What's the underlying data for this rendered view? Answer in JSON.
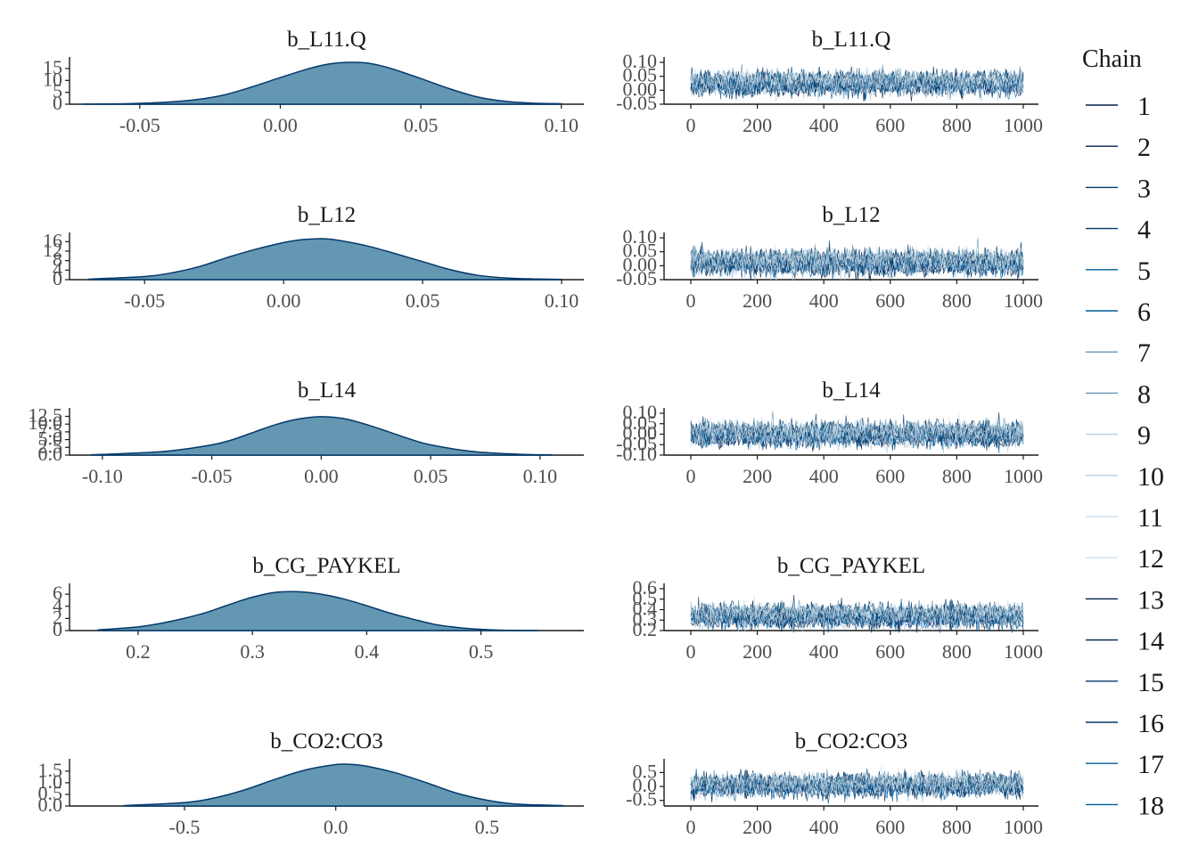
{
  "chart_data": [
    {
      "type": "area",
      "title": "b_L11.Q",
      "xlim": [
        -0.075,
        0.108
      ],
      "ylim": [
        0,
        17.6
      ],
      "xticks": [
        "-0.05",
        "0.00",
        "0.05",
        "0.10"
      ],
      "yticks": [
        "0",
        "5",
        "10",
        "15"
      ],
      "density": {
        "x": [
          -0.07,
          -0.055,
          -0.04,
          -0.03,
          -0.02,
          -0.01,
          0,
          0.01,
          0.015,
          0.02,
          0.025,
          0.03,
          0.035,
          0.04,
          0.05,
          0.06,
          0.07,
          0.08,
          0.09,
          0.1
        ],
        "y": [
          0.05,
          0.2,
          0.9,
          1.9,
          3.9,
          7.3,
          11.2,
          14.9,
          16.4,
          17.3,
          17.6,
          17.4,
          16.4,
          14.8,
          10.8,
          6.6,
          3.1,
          1.2,
          0.4,
          0.2
        ]
      }
    },
    {
      "type": "line",
      "title": "b_L11.Q",
      "xlim": [
        0,
        1000
      ],
      "ylim": [
        -0.05,
        0.1
      ],
      "xticks": [
        "0",
        "200",
        "400",
        "600",
        "800",
        "1000"
      ],
      "yticks": [
        "-0.05",
        "0.00",
        "0.05",
        "0.10"
      ],
      "trace": {
        "center": 0.025,
        "spread": 0.023,
        "min": -0.04,
        "max": 0.095
      }
    },
    {
      "type": "area",
      "title": "b_L12",
      "xlim": [
        -0.077,
        0.108
      ],
      "ylim": [
        0,
        17.6
      ],
      "xticks": [
        "-0.05",
        "0.00",
        "0.05",
        "0.10"
      ],
      "yticks": [
        "0",
        "4",
        "8",
        "12",
        "16"
      ],
      "density": {
        "x": [
          -0.07,
          -0.05,
          -0.04,
          -0.03,
          -0.02,
          -0.01,
          0,
          0.005,
          0.01,
          0.015,
          0.02,
          0.03,
          0.04,
          0.05,
          0.06,
          0.07,
          0.08,
          0.09,
          0.1
        ],
        "y": [
          0.2,
          1.3,
          2.9,
          5.6,
          9.4,
          12.8,
          15.6,
          16.6,
          17.1,
          17.2,
          16.5,
          14.2,
          11,
          7.6,
          4.2,
          1.8,
          0.7,
          0.3,
          0.1
        ]
      }
    },
    {
      "type": "line",
      "title": "b_L12",
      "xlim": [
        0,
        1000
      ],
      "ylim": [
        -0.05,
        0.1
      ],
      "xticks": [
        "0",
        "200",
        "400",
        "600",
        "800",
        "1000"
      ],
      "yticks": [
        "-0.05",
        "0.00",
        "0.05",
        "0.10"
      ],
      "trace": {
        "center": 0.012,
        "spread": 0.024,
        "min": -0.055,
        "max": 0.1
      }
    },
    {
      "type": "area",
      "title": "b_L14",
      "xlim": [
        -0.115,
        0.12
      ],
      "ylim": [
        0,
        13.5
      ],
      "xticks": [
        "-0.10",
        "-0.05",
        "0.00",
        "0.05",
        "0.10"
      ],
      "yticks": [
        "0.0",
        "2.5",
        "5.0",
        "7.5",
        "10.0",
        "12.5"
      ],
      "density": {
        "x": [
          -0.105,
          -0.09,
          -0.07,
          -0.05,
          -0.04,
          -0.03,
          -0.02,
          -0.01,
          0,
          0.01,
          0.02,
          0.03,
          0.04,
          0.05,
          0.07,
          0.09,
          0.105
        ],
        "y": [
          0.1,
          0.5,
          1.3,
          3.3,
          5.1,
          7.6,
          10,
          11.7,
          12.4,
          11.8,
          10,
          7.7,
          5.3,
          3.3,
          1.1,
          0.3,
          0.1
        ]
      }
    },
    {
      "type": "line",
      "title": "b_L14",
      "xlim": [
        0,
        1000
      ],
      "ylim": [
        -0.1,
        0.1
      ],
      "xticks": [
        "0",
        "200",
        "400",
        "600",
        "800",
        "1000"
      ],
      "yticks": [
        "-0.10",
        "-0.05",
        "0.00",
        "0.05",
        "0.10"
      ],
      "trace": {
        "center": 0.0,
        "spread": 0.032,
        "min": -0.1,
        "max": 0.11
      }
    },
    {
      "type": "area",
      "title": "b_CG_PAYKEL",
      "xlim": [
        0.14,
        0.59
      ],
      "ylim": [
        0,
        6.9
      ],
      "xticks": [
        "0.2",
        "0.3",
        "0.4",
        "0.5"
      ],
      "yticks": [
        "0",
        "2",
        "4",
        "6"
      ],
      "density": {
        "x": [
          0.165,
          0.2,
          0.22,
          0.24,
          0.26,
          0.28,
          0.3,
          0.32,
          0.34,
          0.36,
          0.38,
          0.4,
          0.42,
          0.44,
          0.46,
          0.48,
          0.5,
          0.52,
          0.55
        ],
        "y": [
          0.1,
          0.6,
          1.2,
          2,
          3,
          4.3,
          5.5,
          6.3,
          6.4,
          6,
          5.2,
          4.1,
          2.9,
          1.9,
          1,
          0.5,
          0.2,
          0.05,
          0.02
        ]
      }
    },
    {
      "type": "line",
      "title": "b_CG_PAYKEL",
      "xlim": [
        0,
        1000
      ],
      "ylim": [
        0.2,
        0.6
      ],
      "xticks": [
        "0",
        "200",
        "400",
        "600",
        "800",
        "1000"
      ],
      "yticks": [
        "0.2",
        "0.3",
        "0.4",
        "0.5",
        "0.6"
      ],
      "trace": {
        "center": 0.34,
        "spread": 0.062,
        "min": 0.18,
        "max": 0.58
      }
    },
    {
      "type": "area",
      "title": "b_CO2:CO3",
      "xlim": [
        -0.88,
        0.82
      ],
      "ylim": [
        0,
        1.8
      ],
      "xticks": [
        "-0.5",
        "0.0",
        "0.5"
      ],
      "yticks": [
        "0.0",
        "0.5",
        "1.0",
        "1.5"
      ],
      "density": {
        "x": [
          -0.7,
          -0.5,
          -0.4,
          -0.3,
          -0.2,
          -0.1,
          0,
          0.05,
          0.1,
          0.2,
          0.3,
          0.4,
          0.5,
          0.6,
          0.75
        ],
        "y": [
          0.02,
          0.15,
          0.35,
          0.7,
          1.15,
          1.55,
          1.78,
          1.79,
          1.72,
          1.42,
          1,
          0.55,
          0.25,
          0.08,
          0.02
        ]
      }
    },
    {
      "type": "line",
      "title": "b_CO2:CO3",
      "xlim": [
        0,
        1000
      ],
      "ylim": [
        -0.7,
        0.8
      ],
      "xticks": [
        "0",
        "200",
        "400",
        "600",
        "800",
        "1000"
      ],
      "yticks": [
        "-0.5",
        "0.0",
        "0.5"
      ],
      "trace": {
        "center": 0.05,
        "spread": 0.22,
        "min": -0.65,
        "max": 0.75
      }
    }
  ],
  "legend": {
    "title": "Chain",
    "entries": [
      "1",
      "2",
      "3",
      "4",
      "5",
      "6",
      "7",
      "8",
      "9",
      "10",
      "11",
      "12",
      "13",
      "14",
      "15",
      "16",
      "17",
      "18"
    ]
  },
  "colors": {
    "density_fill": "#6497b1",
    "density_line": "#03396c",
    "axis": "#1a1a1a",
    "tick_text": "#4d4d4d",
    "chain_palette": [
      "#011f4b",
      "#03396c",
      "#005b96",
      "#6497b1",
      "#b3cde0",
      "#d1e1ec"
    ]
  }
}
